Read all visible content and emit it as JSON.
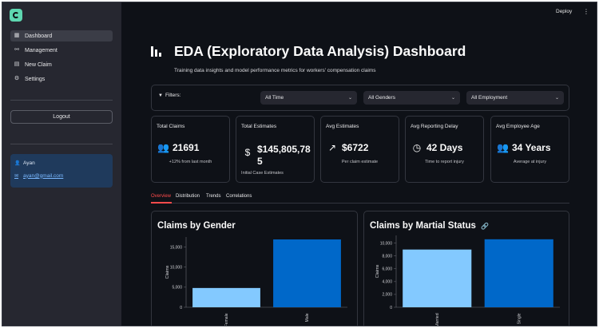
{
  "header": {
    "deploy_label": "Deploy",
    "menu_icon": "kebab-menu-icon"
  },
  "sidebar": {
    "logo_icon": "app-logo-icon",
    "items": [
      {
        "label": "Dashboard",
        "icon": "dashboard-icon",
        "active": true
      },
      {
        "label": "Management",
        "icon": "management-icon",
        "active": false
      },
      {
        "label": "New Claim",
        "icon": "new-claim-icon",
        "active": false
      },
      {
        "label": "Settings",
        "icon": "gear-icon",
        "active": false
      }
    ],
    "logout_label": "Logout",
    "user": {
      "name": "Ayan",
      "email": "ayan@gmail.com"
    }
  },
  "main": {
    "title": "EDA (Exploratory Data Analysis) Dashboard",
    "subtitle": "Training data insights and model performance metrics for workers' compensation claims",
    "filters": {
      "label": "Filters:",
      "time": "All Time",
      "gender": "All Genders",
      "employment": "All Employment"
    },
    "metrics": [
      {
        "label": "Total Claims",
        "value": "21691",
        "sub": "+12% from last month",
        "icon": "users-icon"
      },
      {
        "label": "Total Estimates",
        "value_line1": "$145,805,78",
        "value_line2": "5",
        "sub": "Initial Case Estimates",
        "icon": "dollar-icon"
      },
      {
        "label": "Avg Estimates",
        "value": "$6722",
        "sub": "Per claim estimate",
        "icon": "trending-up-icon"
      },
      {
        "label": "Avg Reporting Delay",
        "value": "42 Days",
        "sub": "Time to report injury",
        "icon": "clock-icon"
      },
      {
        "label": "Avg Employee Age",
        "value": "34 Years",
        "sub": "Average at injury",
        "icon": "users-icon"
      }
    ],
    "tabs": [
      "Overview",
      "Distribution",
      "Trends",
      "Correlations"
    ],
    "active_tab": "Overview"
  },
  "chart_data": [
    {
      "type": "bar",
      "title": "Claims by Gender",
      "categories": [
        "Female",
        "Male"
      ],
      "values": [
        4800,
        16900
      ],
      "ylabel": "Claims",
      "xlabel": "",
      "yticks": [
        0,
        5000,
        10000,
        15000
      ],
      "ytick_labels": [
        "0",
        "5,000",
        "10,000",
        "15,000"
      ],
      "ylim": [
        0,
        17500
      ],
      "colors": [
        "#83c9ff",
        "#0068c9"
      ],
      "grid": false
    },
    {
      "type": "bar",
      "title": "Claims by Martial Status",
      "categories": [
        "Married",
        "Single"
      ],
      "values": [
        9000,
        10600
      ],
      "ylabel": "Claims",
      "xlabel": "",
      "yticks": [
        0,
        2000,
        4000,
        6000,
        8000,
        10000
      ],
      "ytick_labels": [
        "0",
        "2,000",
        "4,000",
        "6,000",
        "8,000",
        "10,000"
      ],
      "ylim": [
        0,
        11200
      ],
      "colors": [
        "#83c9ff",
        "#0068c9"
      ],
      "grid": false
    }
  ]
}
